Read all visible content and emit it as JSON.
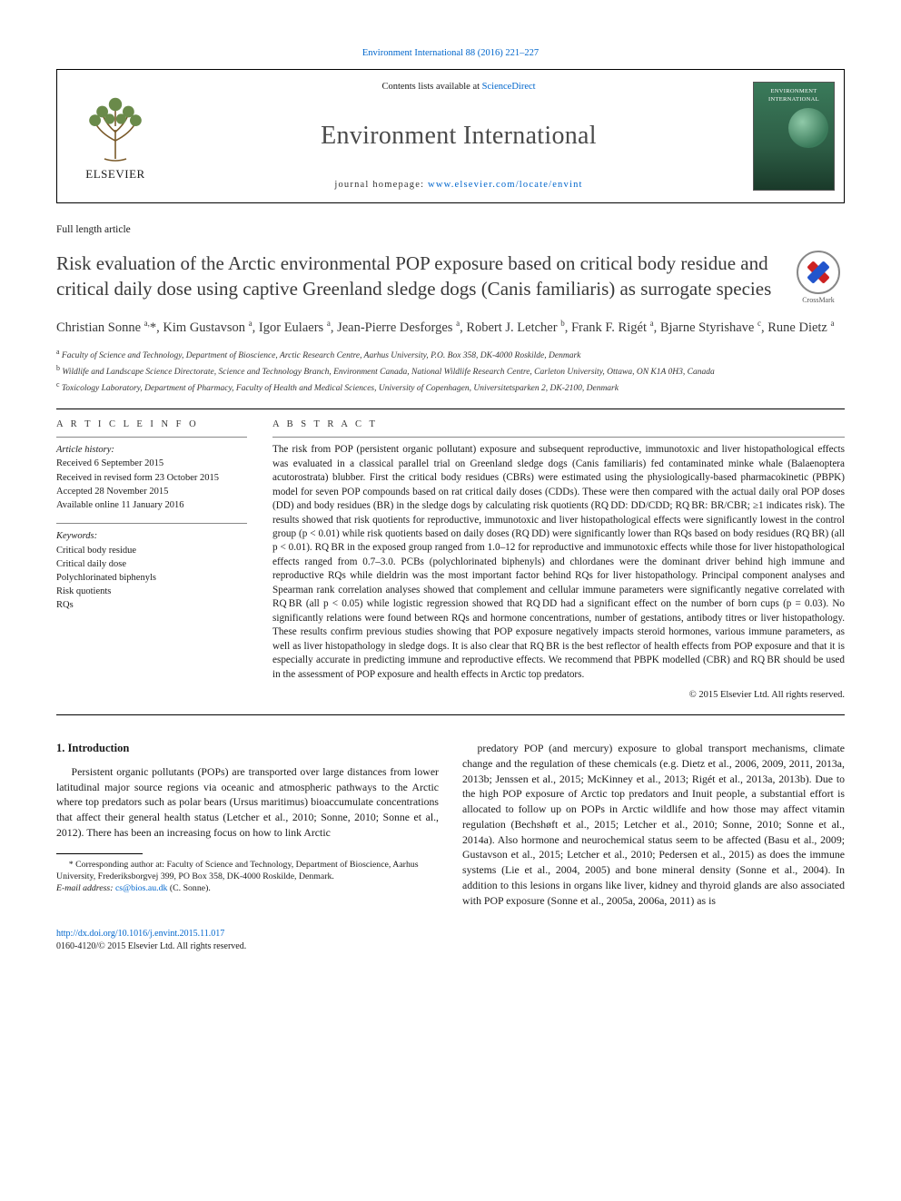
{
  "citation": {
    "prefix": "",
    "journal_link": "Environment International 88 (2016) 221–227"
  },
  "header": {
    "contents_prefix": "Contents lists available at ",
    "contents_link": "ScienceDirect",
    "journal_name": "Environment International",
    "homepage_prefix": "journal homepage: ",
    "homepage_link": "www.elsevier.com/locate/envint",
    "publisher_label": "ELSEVIER",
    "cover_title": "ENVIRONMENT INTERNATIONAL"
  },
  "article": {
    "type": "Full length article",
    "title": "Risk evaluation of the Arctic environmental POP exposure based on critical body residue and critical daily dose using captive Greenland sledge dogs (Canis familiaris) as surrogate species",
    "crossmark": "CrossMark"
  },
  "authors_html": "Christian Sonne <sup>a,</sup>*, Kim Gustavson <sup>a</sup>, Igor Eulaers <sup>a</sup>, Jean-Pierre Desforges <sup>a</sup>, Robert J. Letcher <sup>b</sup>, Frank F. Rigét <sup>a</sup>, Bjarne Styrishave <sup>c</sup>, Rune Dietz <sup>a</sup>",
  "affiliations": [
    {
      "sup": "a",
      "text": "Faculty of Science and Technology, Department of Bioscience, Arctic Research Centre, Aarhus University, P.O. Box 358, DK-4000 Roskilde, Denmark"
    },
    {
      "sup": "b",
      "text": "Wildlife and Landscape Science Directorate, Science and Technology Branch, Environment Canada, National Wildlife Research Centre, Carleton University, Ottawa, ON K1A 0H3, Canada"
    },
    {
      "sup": "c",
      "text": "Toxicology Laboratory, Department of Pharmacy, Faculty of Health and Medical Sciences, University of Copenhagen, Universitetsparken 2, DK-2100, Denmark"
    }
  ],
  "info": {
    "section_label": "A R T I C L E   I N F O",
    "history_label": "Article history:",
    "history": [
      "Received 6 September 2015",
      "Received in revised form 23 October 2015",
      "Accepted 28 November 2015",
      "Available online 11 January 2016"
    ],
    "keywords_label": "Keywords:",
    "keywords": [
      "Critical body residue",
      "Critical daily dose",
      "Polychlorinated biphenyls",
      "Risk quotients",
      "RQs"
    ]
  },
  "abstract": {
    "section_label": "A B S T R A C T",
    "text": "The risk from POP (persistent organic pollutant) exposure and subsequent reproductive, immunotoxic and liver histopathological effects was evaluated in a classical parallel trial on Greenland sledge dogs (Canis familiaris) fed contaminated minke whale (Balaenoptera acutorostrata) blubber. First the critical body residues (CBRs) were estimated using the physiologically-based pharmacokinetic (PBPK) model for seven POP compounds based on rat critical daily doses (CDDs). These were then compared with the actual daily oral POP doses (DD) and body residues (BR) in the sledge dogs by calculating risk quotients (RQ DD: DD/CDD; RQ BR: BR/CBR; ≥1 indicates risk). The results showed that risk quotients for reproductive, immunotoxic and liver histopathological effects were significantly lowest in the control group (p < 0.01) while risk quotients based on daily doses (RQ DD) were significantly lower than RQs based on body residues (RQ BR) (all p < 0.01). RQ BR in the exposed group ranged from 1.0–12 for reproductive and immunotoxic effects while those for liver histopathological effects ranged from 0.7–3.0. PCBs (polychlorinated biphenyls) and chlordanes were the dominant driver behind high immune and reproductive RQs while dieldrin was the most important factor behind RQs for liver histopathology. Principal component analyses and Spearman rank correlation analyses showed that complement and cellular immune parameters were significantly negative correlated with RQ BR (all p < 0.05) while logistic regression showed that RQ DD had a significant effect on the number of born cups (p = 0.03). No significantly relations were found between RQs and hormone concentrations, number of gestations, antibody titres or liver histopathology. These results confirm previous studies showing that POP exposure negatively impacts steroid hormones, various immune parameters, as well as liver histopathology in sledge dogs. It is also clear that RQ BR is the best reflector of health effects from POP exposure and that it is especially accurate in predicting immune and reproductive effects. We recommend that PBPK modelled (CBR) and RQ BR should be used in the assessment of POP exposure and health effects in Arctic top predators.",
    "copyright": "© 2015 Elsevier Ltd. All rights reserved."
  },
  "body": {
    "heading": "1. Introduction",
    "p1": "Persistent organic pollutants (POPs) are transported over large distances from lower latitudinal major source regions via oceanic and atmospheric pathways to the Arctic where top predators such as polar bears (Ursus maritimus) bioaccumulate concentrations that affect their general health status (Letcher et al., 2010; Sonne, 2010; Sonne et al., 2012). There has been an increasing focus on how to link Arctic",
    "p2": "predatory POP (and mercury) exposure to global transport mechanisms, climate change and the regulation of these chemicals (e.g. Dietz et al., 2006, 2009, 2011, 2013a, 2013b; Jenssen et al., 2015; McKinney et al., 2013; Rigét et al., 2013a, 2013b). Due to the high POP exposure of Arctic top predators and Inuit people, a substantial effort is allocated to follow up on POPs in Arctic wildlife and how those may affect vitamin regulation (Bechshøft et al., 2015; Letcher et al., 2010; Sonne, 2010; Sonne et al., 2014a). Also hormone and neurochemical status seem to be affected (Basu et al., 2009; Gustavson et al., 2015; Letcher et al., 2010; Pedersen et al., 2015) as does the immune systems (Lie et al., 2004, 2005) and bone mineral density (Sonne et al., 2004). In addition to this lesions in organs like liver, kidney and thyroid glands are also associated with POP exposure (Sonne et al., 2005a, 2006a, 2011) as is"
  },
  "footnotes": {
    "corr": "* Corresponding author at: Faculty of Science and Technology, Department of Bioscience, Aarhus University, Frederiksborgvej 399, PO Box 358, DK-4000 Roskilde, Denmark.",
    "email_label": "E-mail address:",
    "email": "cs@bios.au.dk",
    "email_who": "(C. Sonne)."
  },
  "doi": {
    "link": "http://dx.doi.org/10.1016/j.envint.2015.11.017",
    "issn": "0160-4120/© 2015 Elsevier Ltd. All rights reserved."
  },
  "colors": {
    "link": "#0066cc",
    "text": "#1a1a1a",
    "muted": "#3a3a3a"
  }
}
